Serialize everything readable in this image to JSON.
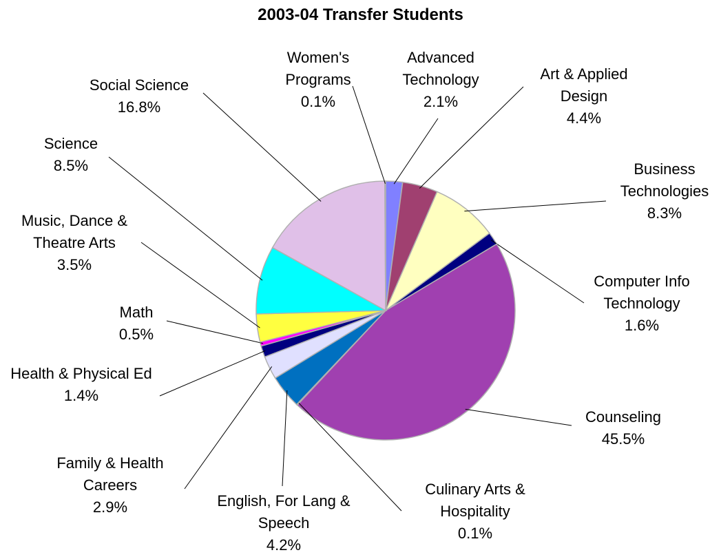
{
  "chart_data": {
    "type": "pie",
    "title": "2003-04 Transfer Students",
    "categories": [
      "Advanced Technology",
      "Art & Applied Design",
      "Business Technologies",
      "Computer Info Technology",
      "Counseling",
      "Culinary Arts & Hospitality",
      "English, For Lang & Speech",
      "Family & Health Careers",
      "Health & Physical Ed",
      "Math",
      "Music, Dance & Theatre Arts",
      "Science",
      "Social Science",
      "Women's Programs"
    ],
    "values": [
      2.1,
      4.4,
      8.3,
      1.6,
      45.5,
      0.1,
      4.2,
      2.9,
      1.4,
      0.5,
      3.5,
      8.5,
      16.8,
      0.1
    ],
    "value_labels": [
      "2.1%",
      "4.4%",
      "8.3%",
      "1.6%",
      "45.5%",
      "0.1%",
      "4.2%",
      "2.9%",
      "1.4%",
      "0.5%",
      "3.5%",
      "8.5%",
      "16.8%",
      "0.1%"
    ],
    "colors": [
      "#8080ff",
      "#a04070",
      "#ffffc0",
      "#000080",
      "#a040b0",
      "#d0d0d0",
      "#0070c0",
      "#e0e0ff",
      "#000080",
      "#ff00ff",
      "#ffff40",
      "#00ffff",
      "#e0c0e8",
      "#ffffff"
    ]
  }
}
